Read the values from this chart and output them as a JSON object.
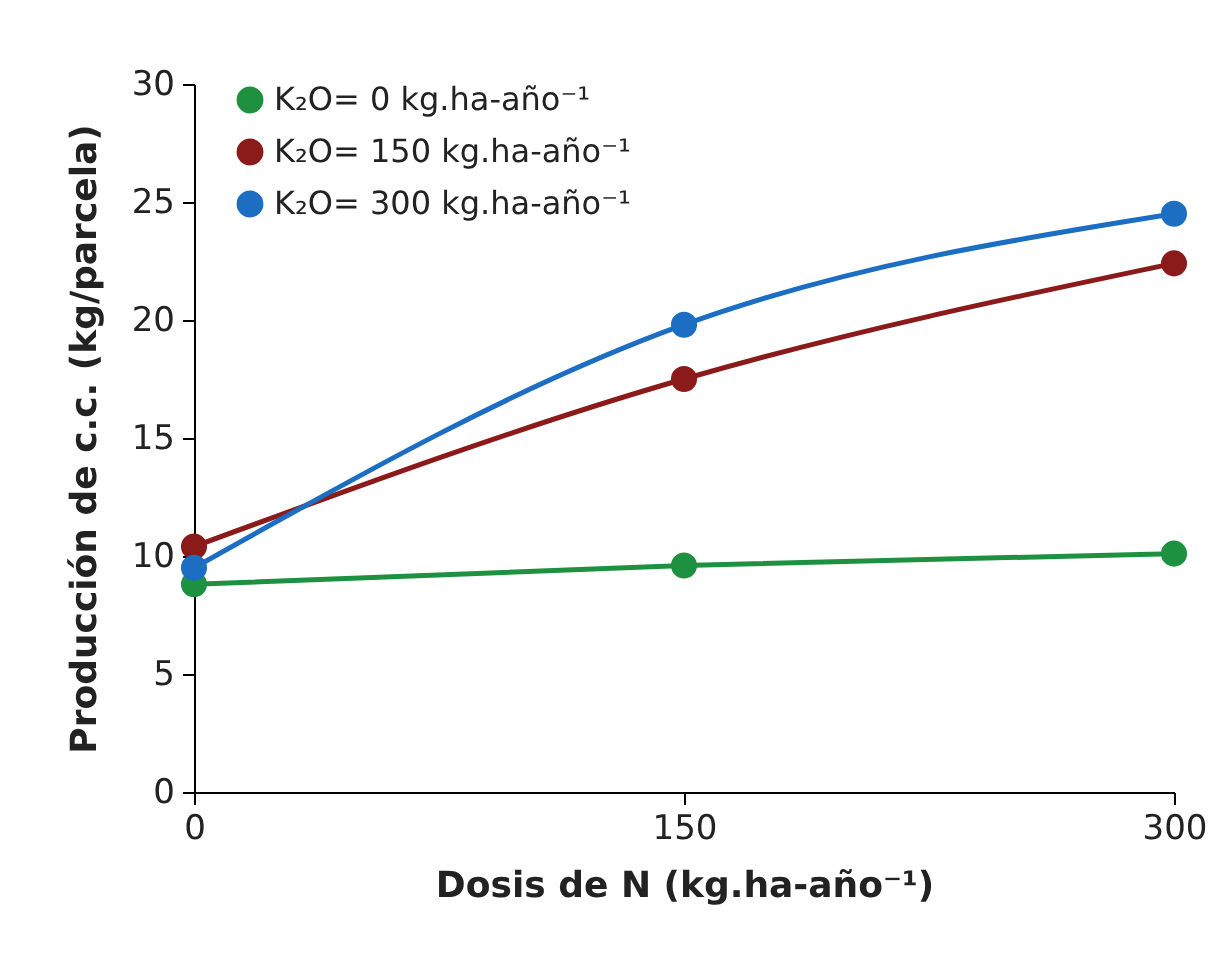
{
  "chart_data": {
    "type": "line",
    "xlabel": "Dosis de N (kg.ha-año⁻¹)",
    "ylabel": "Producción de c.c. (kg/parcela)",
    "x": [
      0,
      150,
      300
    ],
    "series": [
      {
        "name": "K₂O= 0 kg.ha-año⁻¹",
        "color": "#1e9140",
        "values": [
          8.8,
          9.6,
          10.1
        ]
      },
      {
        "name": "K₂O= 150 kg.ha-año⁻¹",
        "color": "#8b1a1a",
        "values": [
          10.4,
          17.5,
          22.4
        ]
      },
      {
        "name": "K₂O= 300 kg.ha-año⁻¹",
        "color": "#1b6ec2",
        "values": [
          9.5,
          19.8,
          24.5
        ]
      }
    ],
    "xlim": [
      0,
      300
    ],
    "xticks": [
      0,
      150,
      300
    ],
    "ylim": [
      0,
      30
    ],
    "yticks": [
      0,
      5,
      10,
      15,
      20,
      25,
      30
    ],
    "grid": false,
    "legend": "top left",
    "marker": "circle",
    "line_style": "solid"
  }
}
